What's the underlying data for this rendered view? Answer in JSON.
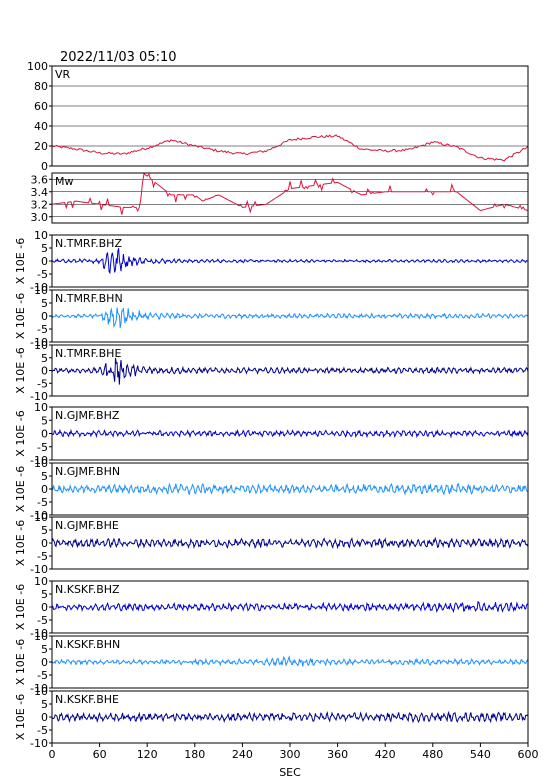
{
  "title": "2022/11/03 05:10",
  "xlabel": "SEC",
  "ylabel_wave": "X 10E -6",
  "colors": {
    "vr_mw": "#dc143c",
    "bhz": "#0000cd",
    "bhn": "#1e90ff",
    "bhe": "#00008b",
    "frame": "#000000"
  },
  "chart_data": [
    {
      "type": "line",
      "name": "VR",
      "label": "VR",
      "xlim": [
        0,
        600
      ],
      "ylim": [
        0,
        100
      ],
      "yticks": [
        "0",
        "20",
        "40",
        "60",
        "80",
        "100"
      ],
      "grid": true,
      "x": [
        0,
        30,
        60,
        90,
        120,
        150,
        180,
        210,
        240,
        270,
        300,
        330,
        360,
        390,
        420,
        450,
        480,
        510,
        540,
        570,
        600
      ],
      "values": [
        20,
        17,
        13,
        12,
        18,
        26,
        20,
        15,
        12,
        15,
        26,
        29,
        30,
        17,
        15,
        16,
        24,
        19,
        8,
        6,
        19
      ]
    },
    {
      "type": "line",
      "name": "Mw",
      "label": "Mw",
      "xlim": [
        0,
        600
      ],
      "ylim": [
        2.9,
        3.7
      ],
      "yticks": [
        "3.0",
        "3.2",
        "3.4",
        "3.6"
      ],
      "grid": true,
      "x": [
        0,
        30,
        60,
        90,
        110,
        115,
        150,
        180,
        190,
        210,
        240,
        270,
        300,
        330,
        360,
        390,
        420,
        450,
        480,
        510,
        540,
        570,
        600
      ],
      "values": [
        3.2,
        3.25,
        3.2,
        3.15,
        3.15,
        3.7,
        3.35,
        3.35,
        3.25,
        3.35,
        3.15,
        3.2,
        3.45,
        3.5,
        3.55,
        3.35,
        3.4,
        3.4,
        3.4,
        3.4,
        3.1,
        3.2,
        3.1
      ]
    },
    {
      "type": "line",
      "name": "N.TMRF.BHZ",
      "label": "N.TMRF.BHZ",
      "component": "bhz",
      "xlim": [
        0,
        600
      ],
      "ylim": [
        -10,
        10
      ],
      "yticks": [
        "-10",
        "-5",
        "0",
        "5",
        "10"
      ],
      "x": [
        0,
        60,
        70,
        80,
        90,
        120,
        180,
        300,
        420,
        540,
        600
      ],
      "values": [
        0.6,
        0.8,
        4.5,
        6.5,
        2.5,
        1.0,
        0.6,
        0.5,
        0.5,
        0.5,
        0.5
      ]
    },
    {
      "type": "line",
      "name": "N.TMRF.BHN",
      "label": "N.TMRF.BHN",
      "component": "bhn",
      "xlim": [
        0,
        600
      ],
      "ylim": [
        -10,
        10
      ],
      "yticks": [
        "-10",
        "-5",
        "0",
        "5",
        "10"
      ],
      "x": [
        0,
        60,
        70,
        80,
        90,
        120,
        180,
        300,
        420,
        540,
        600
      ],
      "values": [
        0.5,
        0.7,
        3.0,
        7.5,
        3.0,
        1.2,
        0.8,
        0.8,
        0.8,
        0.8,
        0.8
      ]
    },
    {
      "type": "line",
      "name": "N.TMRF.BHE",
      "label": "N.TMRF.BHE",
      "component": "bhe",
      "xlim": [
        0,
        600
      ],
      "ylim": [
        -10,
        10
      ],
      "yticks": [
        "-10",
        "-5",
        "0",
        "5",
        "10"
      ],
      "x": [
        0,
        60,
        70,
        80,
        90,
        120,
        180,
        300,
        420,
        540,
        600
      ],
      "values": [
        0.8,
        1.0,
        3.5,
        7.5,
        3.0,
        1.5,
        1.0,
        1.0,
        1.0,
        1.0,
        1.0
      ]
    },
    {
      "type": "line",
      "name": "N.GJMF.BHZ",
      "label": "N.GJMF.BHZ",
      "component": "bhz",
      "xlim": [
        0,
        600
      ],
      "ylim": [
        -10,
        10
      ],
      "yticks": [
        "-10",
        "-5",
        "0",
        "5",
        "10"
      ],
      "x": [
        0,
        120,
        240,
        360,
        480,
        600
      ],
      "values": [
        1.0,
        1.0,
        1.0,
        1.0,
        1.1,
        1.0
      ]
    },
    {
      "type": "line",
      "name": "N.GJMF.BHN",
      "label": "N.GJMF.BHN",
      "component": "bhn",
      "xlim": [
        0,
        600
      ],
      "ylim": [
        -10,
        10
      ],
      "yticks": [
        "-10",
        "-5",
        "0",
        "5",
        "10"
      ],
      "x": [
        0,
        120,
        180,
        240,
        360,
        480,
        600
      ],
      "values": [
        1.3,
        1.5,
        2.0,
        1.5,
        1.5,
        1.8,
        1.5
      ]
    },
    {
      "type": "line",
      "name": "N.GJMF.BHE",
      "label": "N.GJMF.BHE",
      "component": "bhe",
      "xlim": [
        0,
        600
      ],
      "ylim": [
        -10,
        10
      ],
      "yticks": [
        "-10",
        "-5",
        "0",
        "5",
        "10"
      ],
      "x": [
        0,
        120,
        240,
        360,
        480,
        600
      ],
      "values": [
        1.3,
        1.5,
        1.5,
        1.5,
        1.6,
        1.5
      ]
    },
    {
      "type": "line",
      "name": "N.KSKF.BHZ",
      "label": "N.KSKF.BHZ",
      "component": "bhz",
      "xlim": [
        0,
        600
      ],
      "ylim": [
        -10,
        10
      ],
      "yticks": [
        "-10",
        "-5",
        "0",
        "5",
        "10"
      ],
      "x": [
        0,
        120,
        240,
        360,
        480,
        540,
        600
      ],
      "values": [
        1.2,
        1.3,
        1.3,
        1.3,
        1.4,
        1.8,
        1.5
      ]
    },
    {
      "type": "line",
      "name": "N.KSKF.BHN",
      "label": "N.KSKF.BHN",
      "component": "bhn",
      "xlim": [
        0,
        600
      ],
      "ylim": [
        -10,
        10
      ],
      "yticks": [
        "-10",
        "-5",
        "0",
        "5",
        "10"
      ],
      "x": [
        0,
        120,
        270,
        290,
        360,
        480,
        600
      ],
      "values": [
        0.8,
        0.8,
        1.0,
        1.8,
        1.0,
        1.0,
        0.8
      ]
    },
    {
      "type": "line",
      "name": "N.KSKF.BHE",
      "label": "N.KSKF.BHE",
      "component": "bhe",
      "xlim": [
        0,
        600
      ],
      "ylim": [
        -10,
        10
      ],
      "yticks": [
        "-10",
        "-5",
        "0",
        "5",
        "10"
      ],
      "x": [
        0,
        120,
        240,
        360,
        480,
        600
      ],
      "values": [
        1.3,
        1.5,
        1.5,
        1.5,
        1.6,
        1.5
      ]
    }
  ],
  "xticks": [
    "0",
    "60",
    "120",
    "180",
    "240",
    "300",
    "360",
    "420",
    "480",
    "540",
    "600"
  ]
}
